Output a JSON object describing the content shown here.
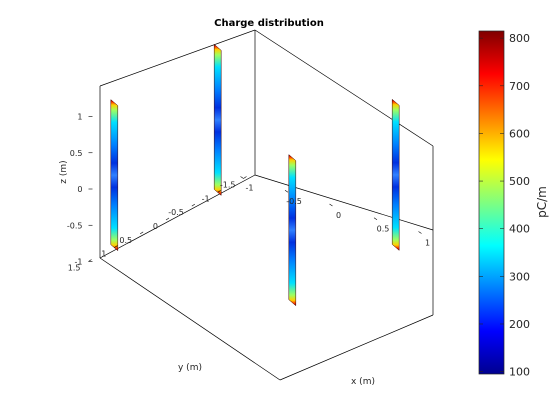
{
  "chart_data": {
    "type": "surface3d",
    "title": "Charge distribution",
    "xlabel": "x (m)",
    "ylabel": "y (m)",
    "zlabel": "z (m)",
    "xlim": [
      -1,
      1
    ],
    "ylim": [
      -1.5,
      1.5
    ],
    "zlim": [
      -1,
      1
    ],
    "xticks": [
      "-1",
      "-0.5",
      "0",
      "0.5",
      "1"
    ],
    "yticks": [
      "-1.5",
      "-1",
      "-0.5",
      "0",
      "0.5",
      "1",
      "1.5"
    ],
    "zticks": [
      "-1",
      "-0.5",
      "0",
      "0.5",
      "1"
    ],
    "colorbar": {
      "label": "pC/m",
      "range": [
        95,
        815
      ],
      "ticks": [
        "100",
        "200",
        "300",
        "400",
        "500",
        "600",
        "700",
        "800"
      ],
      "colormap": "jet"
    },
    "dipoles": [
      {
        "x": -1,
        "y": 1,
        "z_range": [
          -1,
          1
        ],
        "charge_min": 100,
        "charge_max": 810
      },
      {
        "x": 1,
        "y": 1,
        "z_range": [
          -1,
          1
        ],
        "charge_min": 100,
        "charge_max": 810
      },
      {
        "x": -1,
        "y": -1,
        "z_range": [
          -1,
          1
        ],
        "charge_min": 100,
        "charge_max": 810
      },
      {
        "x": 1,
        "y": -1,
        "z_range": [
          -1,
          1
        ],
        "charge_min": 100,
        "charge_max": 810
      }
    ]
  }
}
